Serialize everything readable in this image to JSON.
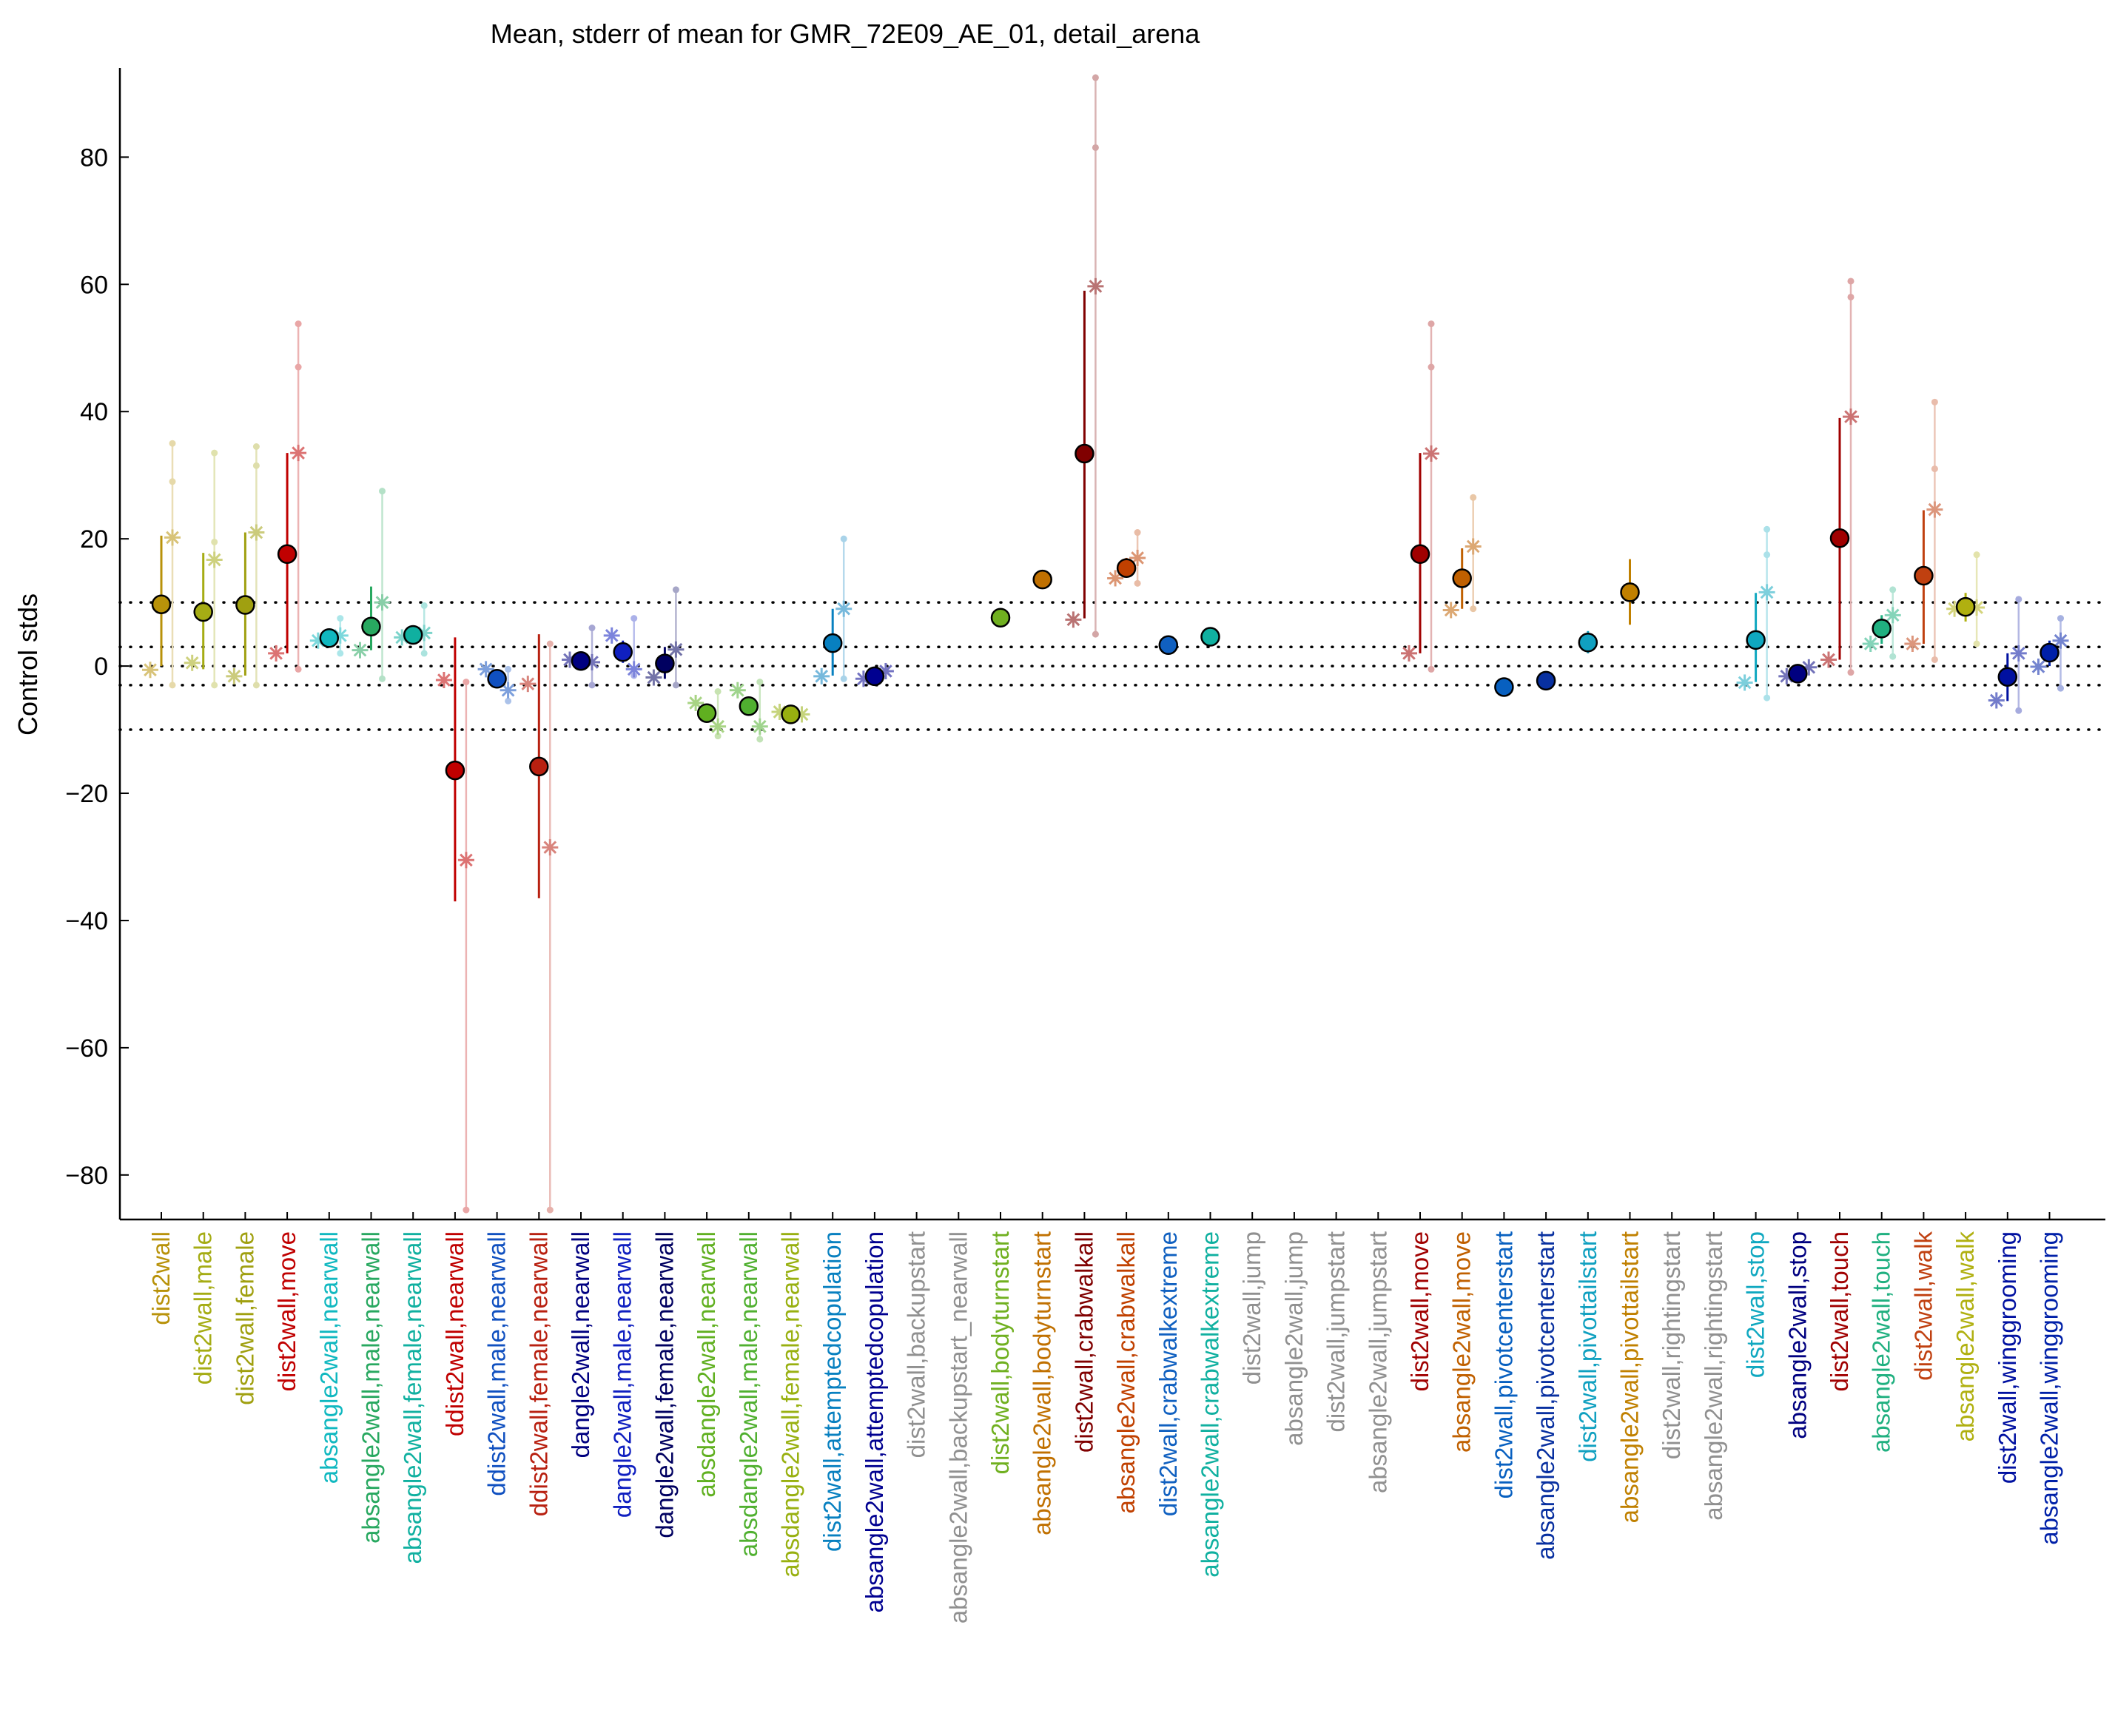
{
  "chart_data": {
    "type": "scatter",
    "title": "Mean, stderr of mean for GMR_72E09_AE_01, detail_arena",
    "xlabel": "",
    "ylabel": "Control stds",
    "ylim": [
      -87,
      94
    ],
    "yticks": [
      80,
      60,
      40,
      20,
      0,
      -20,
      -40,
      -60,
      -80
    ],
    "ytick_labels": [
      "80",
      "60",
      "40",
      "20",
      "0",
      "−20",
      "−40",
      "−60",
      "−80"
    ],
    "reference_lines": [
      10,
      3,
      0,
      -3,
      -10
    ],
    "categories": [
      "dist2wall",
      "dist2wall,male",
      "dist2wall,female",
      "dist2wall,move",
      "absangle2wall,nearwall",
      "absangle2wall,male,nearwall",
      "absangle2wall,female,nearwall",
      "ddist2wall,nearwall",
      "ddist2wall,male,nearwall",
      "ddist2wall,female,nearwall",
      "dangle2wall,nearwall",
      "dangle2wall,male,nearwall",
      "dangle2wall,female,nearwall",
      "absdangle2wall,nearwall",
      "absdangle2wall,male,nearwall",
      "absdangle2wall,female,nearwall",
      "dist2wall,attemptedcopulation",
      "absangle2wall,attemptedcopulation",
      "dist2wall,backupstart",
      "absangle2wall,backupstart_nearwall",
      "dist2wall,bodyturnstart",
      "absangle2wall,bodyturnstart",
      "dist2wall,crabwalkall",
      "absangle2wall,crabwalkall",
      "dist2wall,crabwalkextreme",
      "absangle2wall,crabwalkextreme",
      "dist2wall,jump",
      "absangle2wall,jump",
      "dist2wall,jumpstart",
      "absangle2wall,jumpstart",
      "dist2wall,move",
      "absangle2wall,move",
      "dist2wall,pivotcenterstart",
      "absangle2wall,pivotcenterstart",
      "dist2wall,pivottailstart",
      "absangle2wall,pivottailstart",
      "dist2wall,rightingstart",
      "absangle2wall,rightingstart",
      "dist2wall,stop",
      "absangle2wall,stop",
      "dist2wall,touch",
      "absangle2wall,touch",
      "dist2wall,walk",
      "absangle2wall,walk",
      "dist2wall,winggrooming",
      "absangle2wall,winggrooming"
    ],
    "colors": [
      "#b8920a",
      "#a5ac14",
      "#a0a010",
      "#c00000",
      "#10b8c0",
      "#28a860",
      "#10b0a0",
      "#c00000",
      "#1050c0",
      "#b82010",
      "#000080",
      "#1020c0",
      "#000060",
      "#60b020",
      "#50b030",
      "#98b010",
      "#0880c0",
      "#000090",
      "#909090",
      "#909090",
      "#70b020",
      "#c07000",
      "#800000",
      "#c04000",
      "#1060c0",
      "#10b0a0",
      "#909090",
      "#909090",
      "#909090",
      "#909090",
      "#a00000",
      "#c06000",
      "#0860c0",
      "#0830a0",
      "#10a0c0",
      "#c08000",
      "#909090",
      "#909090",
      "#10a8c0",
      "#000080",
      "#a00000",
      "#20b080",
      "#c04010",
      "#b0b010",
      "#0010a0",
      "#0020a8"
    ],
    "points": [
      {
        "i": 0,
        "mean": 9.7,
        "lo": 0,
        "hi": 20.5,
        "stars": [
          [
            -0.6,
            20.2
          ]
        ],
        "extras": [
          [
            29,
            35,
            -3
          ]
        ]
      },
      {
        "i": 1,
        "mean": 8.5,
        "lo": -0.5,
        "hi": 17.8,
        "stars": [
          [
            0.5,
            16.7
          ]
        ],
        "extras": [
          [
            19.5,
            33.5,
            -3
          ]
        ]
      },
      {
        "i": 2,
        "mean": 9.6,
        "lo": -1.5,
        "hi": 21,
        "stars": [
          [
            -1.6,
            21
          ]
        ],
        "extras": [
          [
            31.5,
            34.5,
            -3
          ]
        ]
      },
      {
        "i": 3,
        "mean": 17.6,
        "lo": 2,
        "hi": 33.5,
        "stars": [
          [
            2,
            33.5
          ]
        ],
        "extras": [
          [
            47,
            53.8,
            -0.5
          ]
        ]
      },
      {
        "i": 4,
        "mean": 4.4,
        "lo": 3.5,
        "hi": 5.5,
        "stars": [
          [
            4,
            4.8
          ]
        ],
        "extras": [
          [
            7.5,
            2
          ]
        ]
      },
      {
        "i": 5,
        "mean": 6.2,
        "lo": 2.5,
        "hi": 12.5,
        "stars": [
          [
            2.5,
            10
          ]
        ],
        "extras": [
          [
            27.5,
            -2
          ]
        ]
      },
      {
        "i": 6,
        "mean": 4.9,
        "lo": 4,
        "hi": 6,
        "stars": [
          [
            4.5,
            5.2
          ]
        ],
        "extras": [
          [
            9.5,
            2
          ]
        ]
      },
      {
        "i": 7,
        "mean": -16.4,
        "lo": -37,
        "hi": 4.5,
        "stars": [
          [
            -2.2,
            -30.5
          ]
        ],
        "extras": [
          [
            -85.5,
            -2.5
          ]
        ]
      },
      {
        "i": 8,
        "mean": -2,
        "lo": -3,
        "hi": -1,
        "stars": [
          [
            -0.5,
            -3.8
          ]
        ],
        "extras": [
          [
            -5.5,
            -0.5
          ]
        ]
      },
      {
        "i": 9,
        "mean": -15.8,
        "lo": -36.5,
        "hi": 5,
        "stars": [
          [
            -2.8,
            -28.5
          ]
        ],
        "extras": [
          [
            -85.5,
            3.5
          ]
        ]
      },
      {
        "i": 10,
        "mean": 0.8,
        "lo": -0.5,
        "hi": 2,
        "stars": [
          [
            1,
            0.6
          ]
        ],
        "extras": [
          [
            6,
            -3
          ]
        ]
      },
      {
        "i": 11,
        "mean": 2.2,
        "lo": 0.5,
        "hi": 4,
        "stars": [
          [
            4.8,
            -0.5
          ]
        ],
        "extras": [
          [
            7.5,
            -1.5
          ]
        ]
      },
      {
        "i": 12,
        "mean": 0.4,
        "lo": -2,
        "hi": 3,
        "stars": [
          [
            -1.8,
            2.6
          ]
        ],
        "extras": [
          [
            12,
            -3
          ]
        ]
      },
      {
        "i": 13,
        "mean": -7.4,
        "lo": -8.5,
        "hi": -6.5,
        "stars": [
          [
            -5.8,
            -9.5
          ]
        ],
        "extras": [
          [
            -11,
            -4
          ]
        ]
      },
      {
        "i": 14,
        "mean": -6.3,
        "lo": -7.5,
        "hi": -5,
        "stars": [
          [
            -3.8,
            -9.5
          ]
        ],
        "extras": [
          [
            -11.5,
            -2.5
          ]
        ]
      },
      {
        "i": 15,
        "mean": -7.6,
        "lo": -8.5,
        "hi": -6.5,
        "stars": [
          [
            -7.2,
            -7.6
          ]
        ],
        "extras": []
      },
      {
        "i": 16,
        "mean": 3.6,
        "lo": -1.5,
        "hi": 9,
        "stars": [
          [
            -1.6,
            9
          ]
        ],
        "extras": [
          [
            20,
            -2
          ]
        ]
      },
      {
        "i": 17,
        "mean": -1.6,
        "lo": -2.5,
        "hi": -0.5,
        "stars": [
          [
            -2,
            -0.8
          ]
        ],
        "extras": []
      },
      {
        "i": 20,
        "mean": 7.6,
        "lo": null,
        "hi": null,
        "stars": [],
        "extras": []
      },
      {
        "i": 21,
        "mean": 13.6,
        "lo": null,
        "hi": null,
        "stars": [],
        "extras": []
      },
      {
        "i": 22,
        "mean": 33.4,
        "lo": 7.5,
        "hi": 59,
        "stars": [
          [
            7.3,
            59.7
          ]
        ],
        "extras": [
          [
            81.5,
            92.5,
            5
          ]
        ]
      },
      {
        "i": 23,
        "mean": 15.4,
        "lo": 14,
        "hi": 17,
        "stars": [
          [
            13.8,
            17
          ]
        ],
        "extras": [
          [
            21,
            13
          ]
        ]
      },
      {
        "i": 24,
        "mean": 3.3,
        "lo": null,
        "hi": null,
        "stars": [],
        "extras": []
      },
      {
        "i": 25,
        "mean": 4.6,
        "lo": null,
        "hi": null,
        "stars": [],
        "extras": []
      },
      {
        "i": 30,
        "mean": 17.6,
        "lo": 2,
        "hi": 33.5,
        "stars": [
          [
            2,
            33.4
          ]
        ],
        "extras": [
          [
            47,
            53.8,
            -0.5
          ]
        ]
      },
      {
        "i": 31,
        "mean": 13.8,
        "lo": 9,
        "hi": 18.5,
        "stars": [
          [
            8.8,
            18.8
          ]
        ],
        "extras": [
          [
            26.5,
            9
          ]
        ]
      },
      {
        "i": 32,
        "mean": -3.3,
        "lo": null,
        "hi": null,
        "stars": [],
        "extras": []
      },
      {
        "i": 33,
        "mean": -2.3,
        "lo": null,
        "hi": null,
        "stars": [],
        "extras": []
      },
      {
        "i": 34,
        "mean": 3.7,
        "lo": 2,
        "hi": 5.5,
        "stars": [],
        "extras": [
          [
            6.5,
            1
          ]
        ]
      },
      {
        "i": 35,
        "mean": 11.6,
        "lo": 6.5,
        "hi": 16.8,
        "stars": [],
        "extras": []
      },
      {
        "i": 38,
        "mean": 4.1,
        "lo": -2.5,
        "hi": 11.5,
        "stars": [
          [
            -2.6,
            11.6
          ]
        ],
        "extras": [
          [
            17.5,
            21.5,
            -5
          ]
        ]
      },
      {
        "i": 39,
        "mean": -1.2,
        "lo": -2,
        "hi": -0.5,
        "stars": [
          [
            -1.6,
            -0.2
          ]
        ],
        "extras": []
      },
      {
        "i": 40,
        "mean": 20.1,
        "lo": 1,
        "hi": 39,
        "stars": [
          [
            1,
            39.2
          ]
        ],
        "extras": [
          [
            58,
            60.5,
            -1
          ]
        ]
      },
      {
        "i": 41,
        "mean": 5.9,
        "lo": 3.5,
        "hi": 8,
        "stars": [
          [
            3.5,
            8
          ]
        ],
        "extras": [
          [
            12,
            1.5
          ]
        ]
      },
      {
        "i": 42,
        "mean": 14.2,
        "lo": 3.5,
        "hi": 24.5,
        "stars": [
          [
            3.5,
            24.6
          ]
        ],
        "extras": [
          [
            31,
            41.5,
            1
          ]
        ]
      },
      {
        "i": 43,
        "mean": 9.3,
        "lo": 7,
        "hi": 11.5,
        "stars": [
          [
            9,
            9.2
          ]
        ],
        "extras": [
          [
            17.5,
            3.5
          ]
        ]
      },
      {
        "i": 44,
        "mean": -1.7,
        "lo": -5.5,
        "hi": 2,
        "stars": [
          [
            -5.4,
            2
          ]
        ],
        "extras": [
          [
            10.5,
            -7
          ]
        ]
      },
      {
        "i": 45,
        "mean": 2.1,
        "lo": 0,
        "hi": 4,
        "stars": [
          [
            -0.1,
            4
          ]
        ],
        "extras": [
          [
            7.5,
            -3.5
          ]
        ]
      }
    ]
  }
}
